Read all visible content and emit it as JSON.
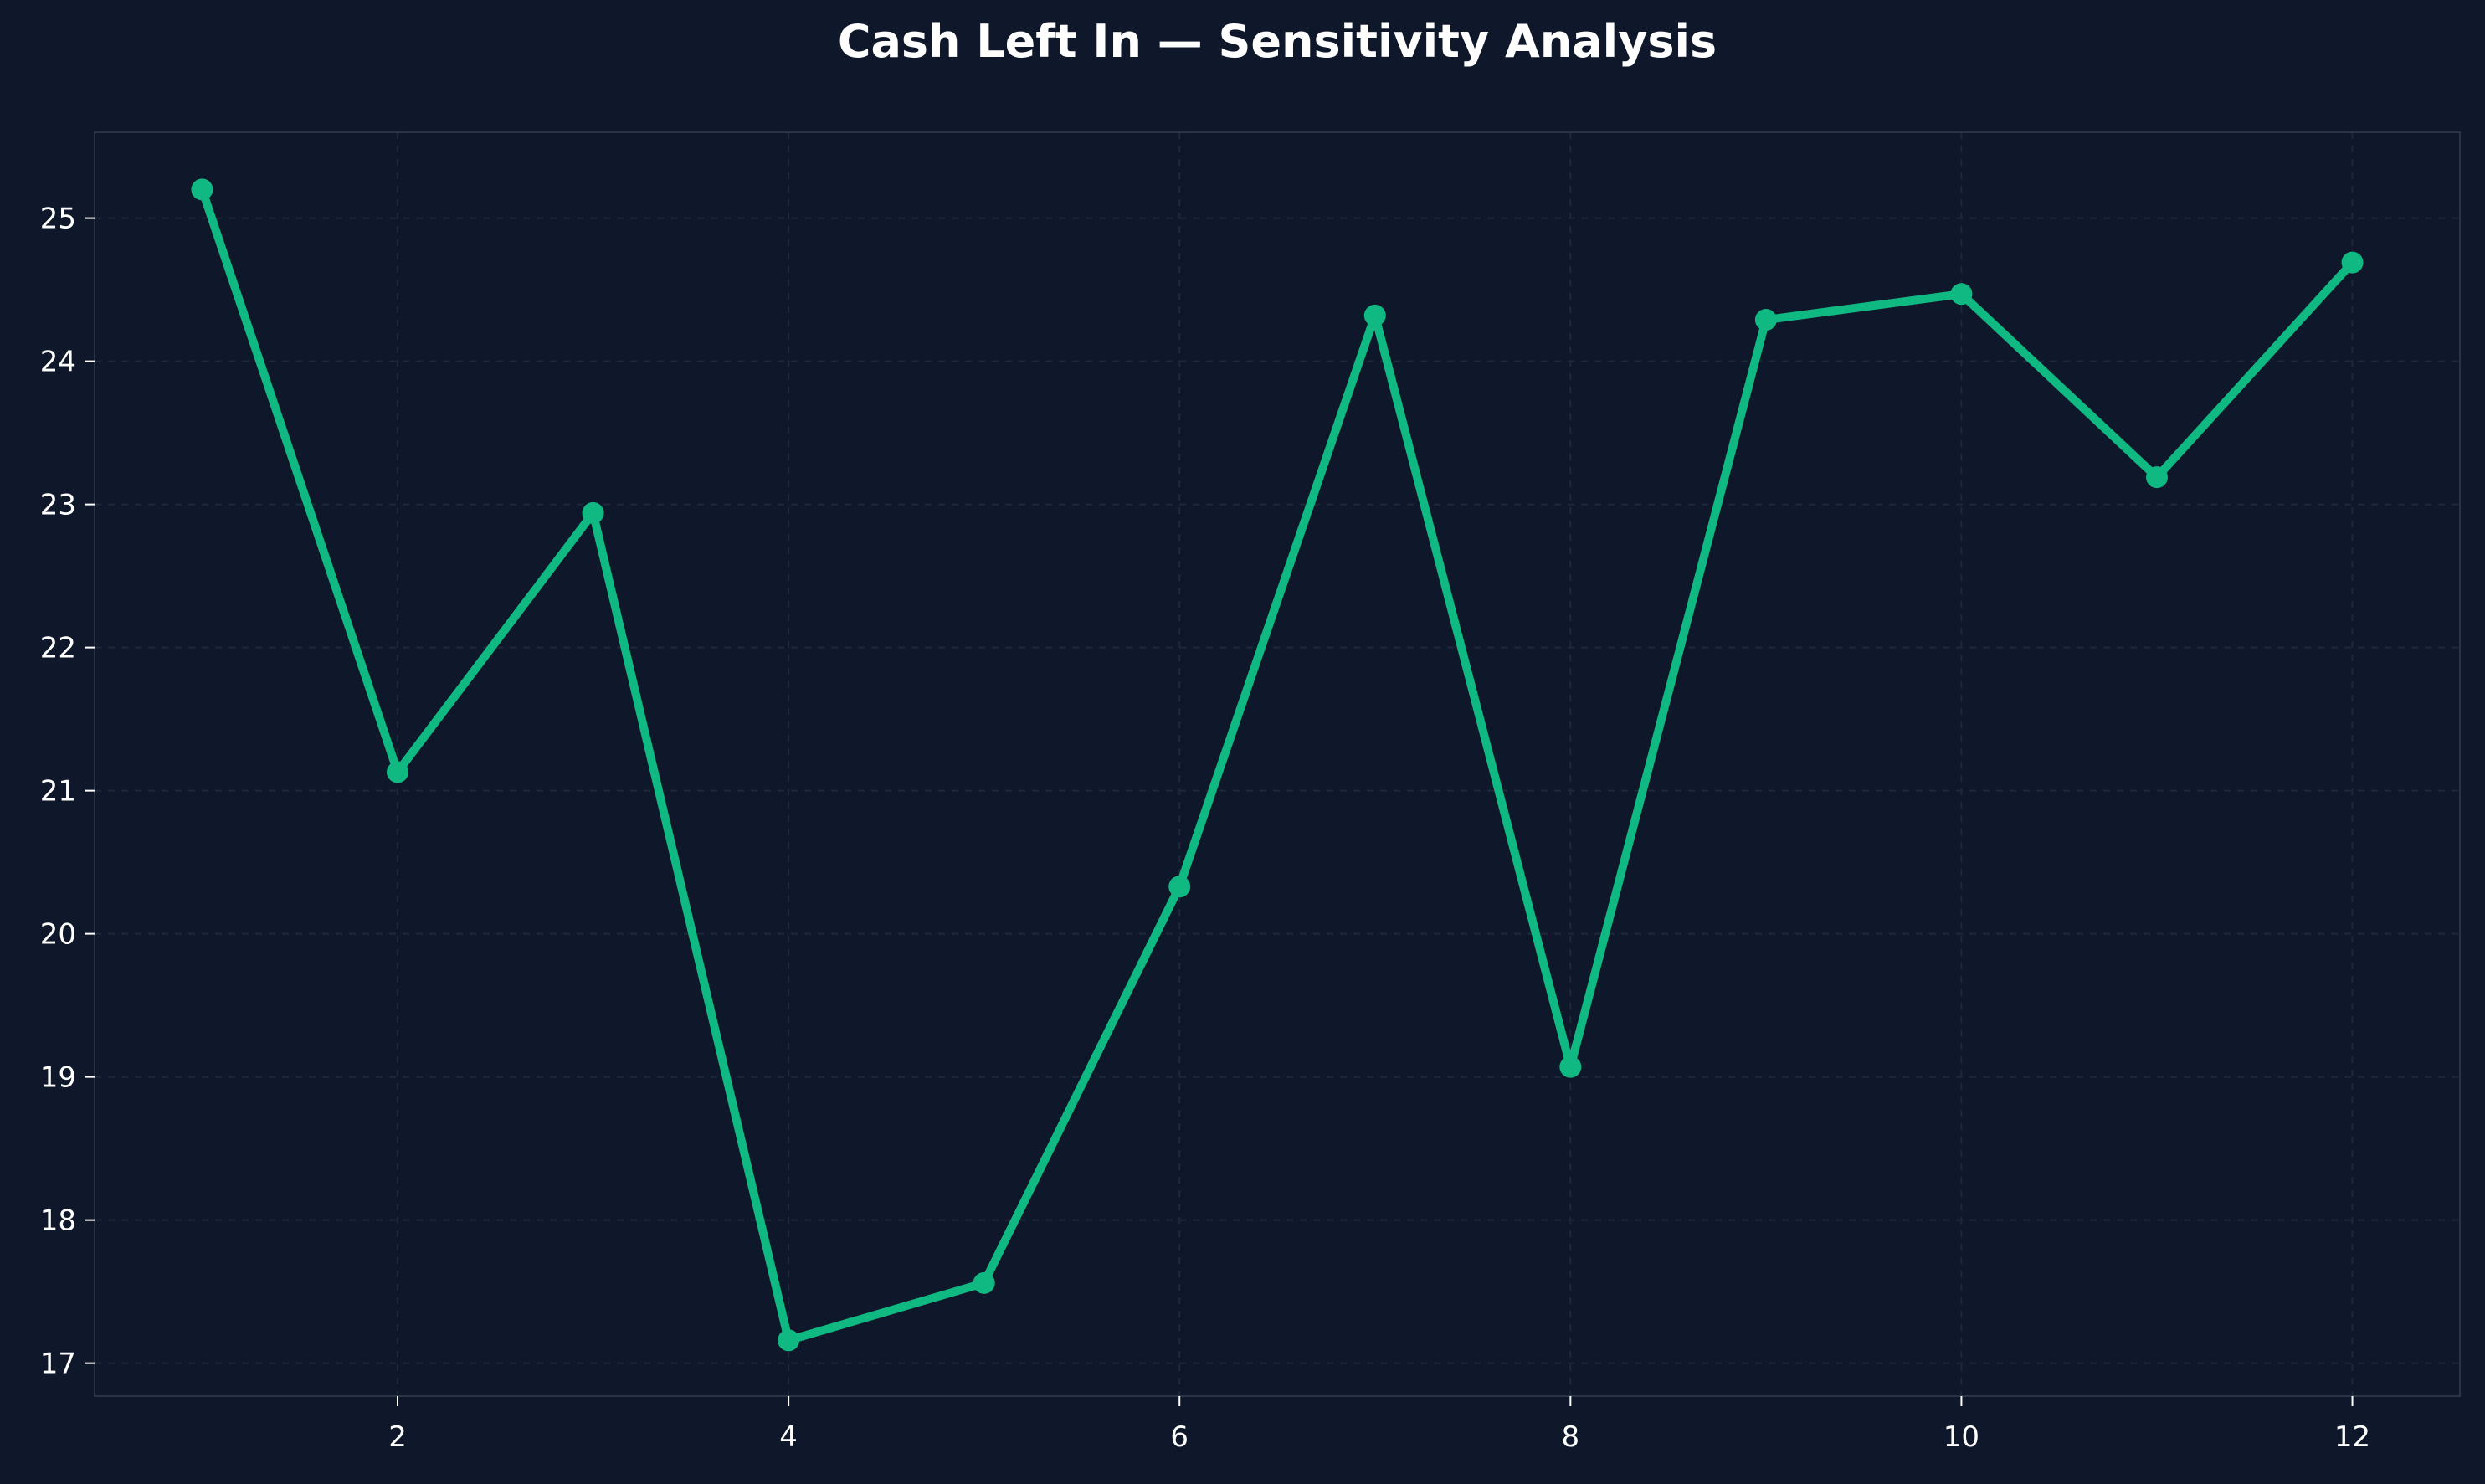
{
  "chart_data": {
    "type": "line",
    "title": "Cash Left In — Sensitivity Analysis",
    "xlabel": "",
    "ylabel": "",
    "xlim": [
      0.45,
      12.55
    ],
    "ylim": [
      16.77,
      25.6
    ],
    "x_ticks": [
      2,
      4,
      6,
      8,
      10,
      12
    ],
    "y_ticks": [
      17,
      18,
      19,
      20,
      21,
      22,
      23,
      24,
      25
    ],
    "grid": true,
    "legend": "none",
    "series": [
      {
        "x": [
          1,
          2,
          3,
          4,
          5,
          6,
          7,
          8,
          9,
          10,
          11,
          12
        ],
        "values": [
          25.2,
          21.13,
          22.94,
          17.16,
          17.56,
          20.33,
          24.32,
          19.07,
          24.29,
          24.47,
          23.19,
          24.69
        ]
      }
    ],
    "colors": {
      "background": "#0f172a",
      "line": "#10b981",
      "text": "#ffffff",
      "axes": "#2a3444",
      "grid": "#1e293b"
    }
  }
}
